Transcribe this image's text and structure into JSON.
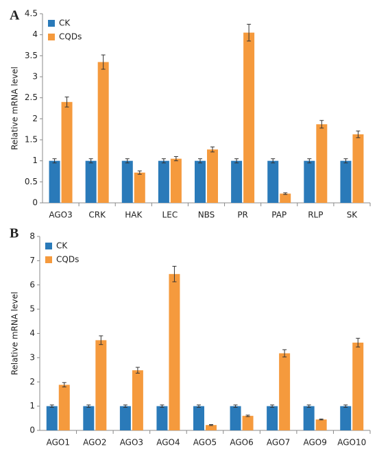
{
  "chart_data": [
    {
      "type": "bar",
      "panel": "A",
      "ylabel": "Relative mRNA level",
      "categories": [
        "AGO3",
        "CRK",
        "HAK",
        "LEC",
        "NBS",
        "PR",
        "PAP",
        "RLP",
        "SK"
      ],
      "series": [
        {
          "name": "CK",
          "color": "#2a7ab9",
          "values": [
            1,
            1,
            1,
            1,
            1,
            1,
            1,
            1,
            1
          ],
          "errors": [
            0.05,
            0.05,
            0.05,
            0.05,
            0.05,
            0.05,
            0.05,
            0.05,
            0.05
          ]
        },
        {
          "name": "CQDs",
          "color": "#f59a3d",
          "values": [
            2.4,
            3.35,
            0.72,
            1.05,
            1.27,
            4.05,
            0.22,
            1.87,
            1.63
          ],
          "errors": [
            0.12,
            0.17,
            0.04,
            0.05,
            0.06,
            0.2,
            0.02,
            0.09,
            0.08
          ]
        }
      ],
      "ylim": [
        0,
        4.5
      ],
      "yticks": [
        0,
        0.5,
        1,
        1.5,
        2,
        2.5,
        3,
        3.5,
        4,
        4.5
      ],
      "grid": false,
      "legend": "upper left"
    },
    {
      "type": "bar",
      "panel": "B",
      "ylabel": "Relative mRNA level",
      "categories": [
        "AGO1",
        "AGO2",
        "AGO3",
        "AGO4",
        "AGO5",
        "AGO6",
        "AGO7",
        "AGO9",
        "AGO10"
      ],
      "series": [
        {
          "name": "CK",
          "color": "#2a7ab9",
          "values": [
            1,
            1,
            1,
            1,
            1,
            1,
            1,
            1,
            1
          ],
          "errors": [
            0.05,
            0.05,
            0.05,
            0.05,
            0.05,
            0.05,
            0.05,
            0.05,
            0.05
          ]
        },
        {
          "name": "CQDs",
          "color": "#f59a3d",
          "values": [
            1.88,
            3.72,
            2.48,
            6.45,
            0.22,
            0.6,
            3.18,
            0.45,
            3.62
          ],
          "errors": [
            0.09,
            0.18,
            0.12,
            0.32,
            0.02,
            0.03,
            0.15,
            0.02,
            0.18
          ]
        }
      ],
      "ylim": [
        0,
        8
      ],
      "yticks": [
        0,
        1,
        2,
        3,
        4,
        5,
        6,
        7,
        8
      ],
      "grid": false,
      "legend": "upper left"
    }
  ]
}
